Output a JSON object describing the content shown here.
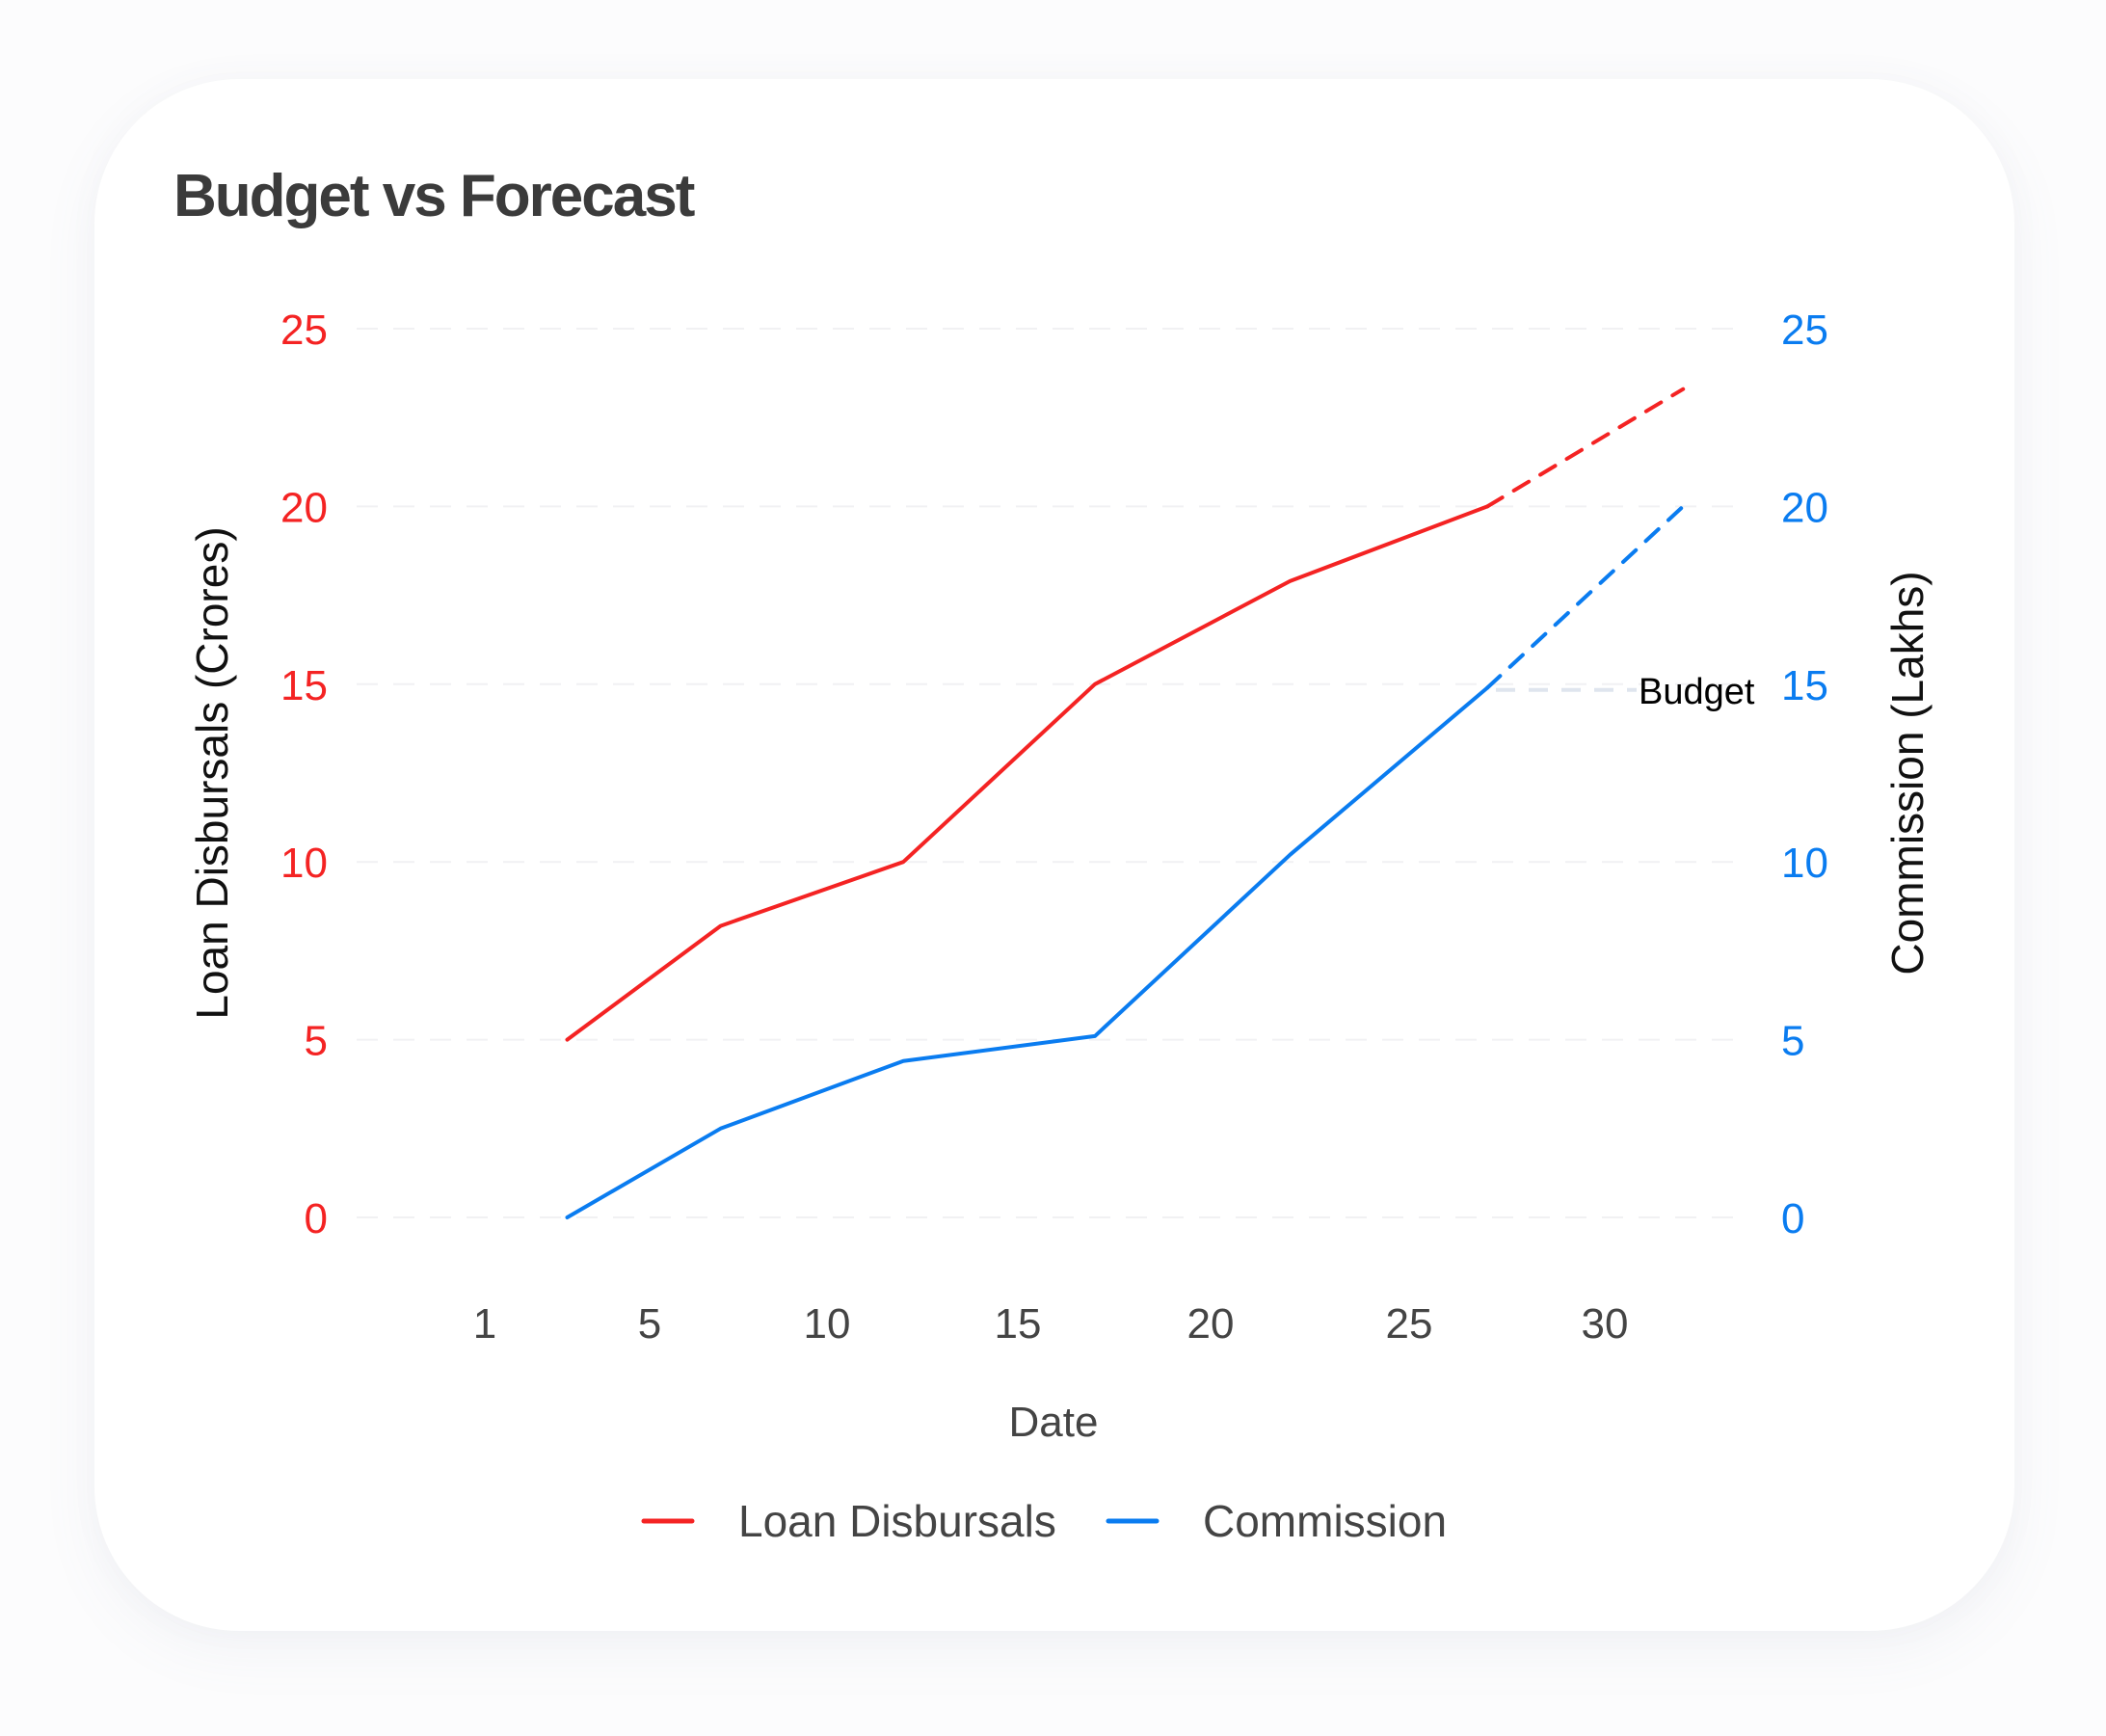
{
  "chart_data": {
    "type": "line",
    "title": "Budget vs Forecast",
    "xlabel": "Date",
    "ylabel_left": "Loan Disbursals (Crores)",
    "ylabel_right": "Commission (Lakhs)",
    "x_ticks": [
      "1",
      "5",
      "10",
      "15",
      "20",
      "25",
      "30"
    ],
    "y_ticks_left": [
      "0",
      "5",
      "10",
      "15",
      "20",
      "25"
    ],
    "y_ticks_right": [
      "0",
      "5",
      "10",
      "15",
      "20",
      "25"
    ],
    "ylim_left": [
      0,
      25
    ],
    "ylim_right": [
      0,
      25
    ],
    "grid": true,
    "x": [
      3,
      7,
      12,
      17,
      22,
      27,
      32
    ],
    "series": [
      {
        "name": "Loan Disbursals",
        "axis": "left",
        "color": "#f42323",
        "values": [
          5,
          8.2,
          10,
          15,
          17.9,
          20,
          23.3
        ],
        "forecast_from_index": 5
      },
      {
        "name": "Commission",
        "axis": "right",
        "color": "#0a7cf0",
        "values": [
          0,
          2.5,
          4.4,
          5.1,
          10.2,
          14.9,
          20
        ],
        "forecast_from_index": 5
      }
    ],
    "annotations": [
      {
        "text": "Budget",
        "axis": "right",
        "y": 15
      }
    ],
    "legend": "bottom-center"
  }
}
